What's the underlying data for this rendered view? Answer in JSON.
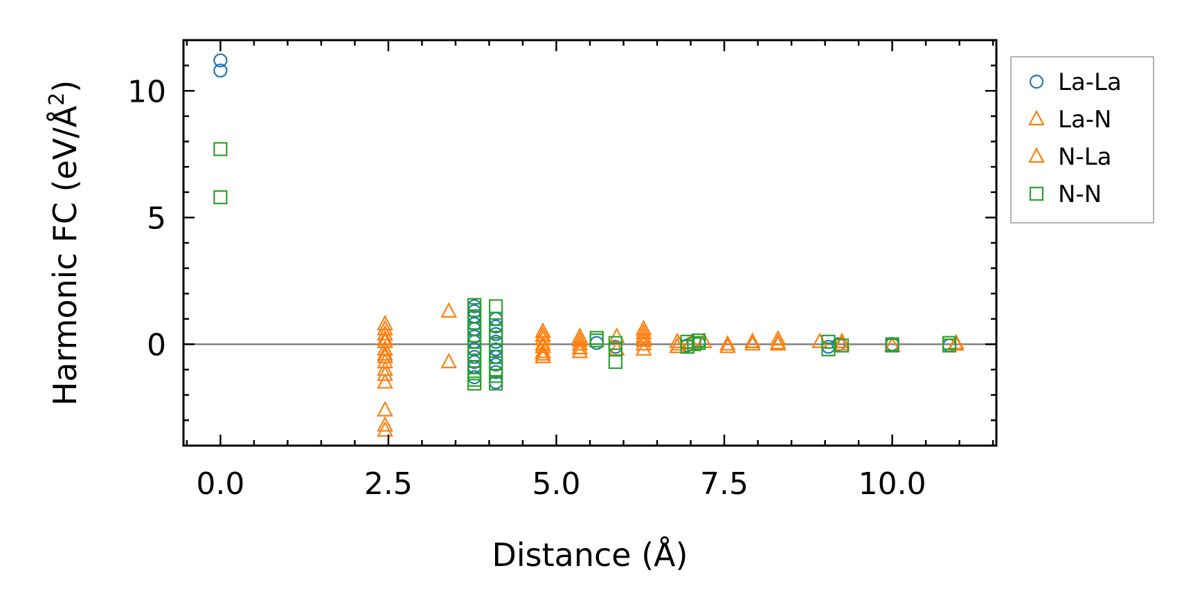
{
  "chart_data": {
    "type": "scatter",
    "xlabel": "Distance (Å)",
    "ylabel_main": "Harmonic FC (eV/Å",
    "ylabel_sup": "2",
    "ylabel_close": ")",
    "xlim": [
      -0.55,
      11.55
    ],
    "ylim": [
      -4.0,
      12.0
    ],
    "xticks": [
      0.0,
      2.5,
      5.0,
      7.5,
      10.0
    ],
    "xtick_labels": [
      "0.0",
      "2.5",
      "5.0",
      "7.5",
      "10.0"
    ],
    "yticks": [
      0,
      5,
      10
    ],
    "ytick_labels": [
      "0",
      "5",
      "10"
    ],
    "zero_line": true,
    "grid": false,
    "legend_position": "outside-right-top",
    "series": [
      {
        "name": "La-La",
        "marker": "circle",
        "color": "#1f77b4",
        "points": [
          [
            0.0,
            11.2
          ],
          [
            0.0,
            10.8
          ],
          [
            3.78,
            1.5
          ],
          [
            3.78,
            1.3
          ],
          [
            3.78,
            1.1
          ],
          [
            3.78,
            0.8
          ],
          [
            3.78,
            0.6
          ],
          [
            3.78,
            0.3
          ],
          [
            3.78,
            0.1
          ],
          [
            3.78,
            -0.2
          ],
          [
            3.78,
            -0.5
          ],
          [
            3.78,
            -0.7
          ],
          [
            3.78,
            -0.9
          ],
          [
            3.78,
            -1.3
          ],
          [
            4.1,
            1.0
          ],
          [
            4.1,
            0.7
          ],
          [
            4.1,
            0.4
          ],
          [
            4.1,
            0.1
          ],
          [
            4.1,
            -0.2
          ],
          [
            4.1,
            -0.5
          ],
          [
            4.1,
            -0.8
          ],
          [
            4.1,
            -1.1
          ],
          [
            4.1,
            -1.5
          ],
          [
            5.6,
            0.05
          ],
          [
            5.88,
            -0.1
          ],
          [
            6.95,
            -0.05
          ],
          [
            7.12,
            0.05
          ],
          [
            9.05,
            -0.1
          ],
          [
            9.2,
            0.0
          ],
          [
            10.0,
            0.0
          ],
          [
            10.85,
            -0.05
          ]
        ]
      },
      {
        "name": "La-N",
        "marker": "triangle",
        "color": "#ff7f0e",
        "points": [
          [
            2.45,
            0.8
          ],
          [
            2.45,
            0.4
          ],
          [
            2.45,
            0.1
          ],
          [
            2.45,
            -0.2
          ],
          [
            2.45,
            -0.4
          ],
          [
            2.45,
            -0.7
          ],
          [
            2.45,
            -1.0
          ],
          [
            2.45,
            -1.5
          ],
          [
            2.45,
            -2.6
          ],
          [
            2.45,
            -3.2
          ],
          [
            3.4,
            1.3
          ],
          [
            3.4,
            -0.7
          ],
          [
            4.8,
            0.5
          ],
          [
            4.8,
            0.2
          ],
          [
            4.8,
            -0.1
          ],
          [
            4.8,
            -0.3
          ],
          [
            4.8,
            -0.5
          ],
          [
            5.35,
            0.3
          ],
          [
            5.35,
            0.0
          ],
          [
            5.35,
            -0.3
          ],
          [
            5.9,
            0.3
          ],
          [
            5.9,
            -0.2
          ],
          [
            6.3,
            0.6
          ],
          [
            6.3,
            0.3
          ],
          [
            6.3,
            0.0
          ],
          [
            6.3,
            -0.2
          ],
          [
            6.8,
            0.1
          ],
          [
            6.8,
            -0.1
          ],
          [
            7.2,
            0.1
          ],
          [
            7.55,
            -0.1
          ],
          [
            7.92,
            0.1
          ],
          [
            8.3,
            0.2
          ],
          [
            8.3,
            0.0
          ],
          [
            8.92,
            0.1
          ],
          [
            9.25,
            0.0
          ],
          [
            10.0,
            -0.05
          ],
          [
            10.95,
            0.05
          ]
        ]
      },
      {
        "name": "N-La",
        "marker": "triangle",
        "color": "#ff7f0e",
        "points": [
          [
            2.45,
            0.6
          ],
          [
            2.45,
            0.2
          ],
          [
            2.45,
            -0.5
          ],
          [
            2.45,
            -1.2
          ],
          [
            2.45,
            -3.4
          ],
          [
            4.8,
            0.35
          ],
          [
            4.8,
            0.0
          ],
          [
            4.8,
            -0.4
          ],
          [
            5.35,
            0.15
          ],
          [
            5.35,
            -0.15
          ],
          [
            6.3,
            0.45
          ],
          [
            6.3,
            0.15
          ],
          [
            6.82,
            0.0
          ],
          [
            7.0,
            0.05
          ],
          [
            7.55,
            0.0
          ],
          [
            7.92,
            0.0
          ],
          [
            8.3,
            0.05
          ],
          [
            9.25,
            0.1
          ],
          [
            10.95,
            0.0
          ]
        ]
      },
      {
        "name": "N-N",
        "marker": "square",
        "color": "#2ca02c",
        "points": [
          [
            0.0,
            7.7
          ],
          [
            0.0,
            5.8
          ],
          [
            3.78,
            1.55
          ],
          [
            3.78,
            1.35
          ],
          [
            3.78,
            1.1
          ],
          [
            3.78,
            0.85
          ],
          [
            3.78,
            0.6
          ],
          [
            3.78,
            0.35
          ],
          [
            3.78,
            0.1
          ],
          [
            3.78,
            -0.15
          ],
          [
            3.78,
            -0.4
          ],
          [
            3.78,
            -0.65
          ],
          [
            3.78,
            -0.9
          ],
          [
            3.78,
            -1.15
          ],
          [
            3.78,
            -1.4
          ],
          [
            3.78,
            -1.55
          ],
          [
            4.1,
            1.5
          ],
          [
            4.1,
            1.0
          ],
          [
            4.1,
            0.75
          ],
          [
            4.1,
            0.5
          ],
          [
            4.1,
            0.25
          ],
          [
            4.1,
            0.0
          ],
          [
            4.1,
            -0.25
          ],
          [
            4.1,
            -0.5
          ],
          [
            4.1,
            -0.75
          ],
          [
            4.1,
            -1.0
          ],
          [
            4.1,
            -1.25
          ],
          [
            4.1,
            -1.55
          ],
          [
            5.6,
            0.25
          ],
          [
            5.6,
            0.15
          ],
          [
            5.88,
            0.05
          ],
          [
            5.88,
            -0.2
          ],
          [
            5.88,
            -0.7
          ],
          [
            6.95,
            0.1
          ],
          [
            6.95,
            -0.1
          ],
          [
            7.05,
            0.0
          ],
          [
            7.12,
            0.15
          ],
          [
            7.12,
            0.05
          ],
          [
            9.05,
            0.1
          ],
          [
            9.05,
            -0.2
          ],
          [
            9.25,
            -0.05
          ],
          [
            10.0,
            0.0
          ],
          [
            10.0,
            -0.05
          ],
          [
            10.85,
            0.05
          ],
          [
            10.85,
            -0.05
          ]
        ]
      }
    ]
  }
}
